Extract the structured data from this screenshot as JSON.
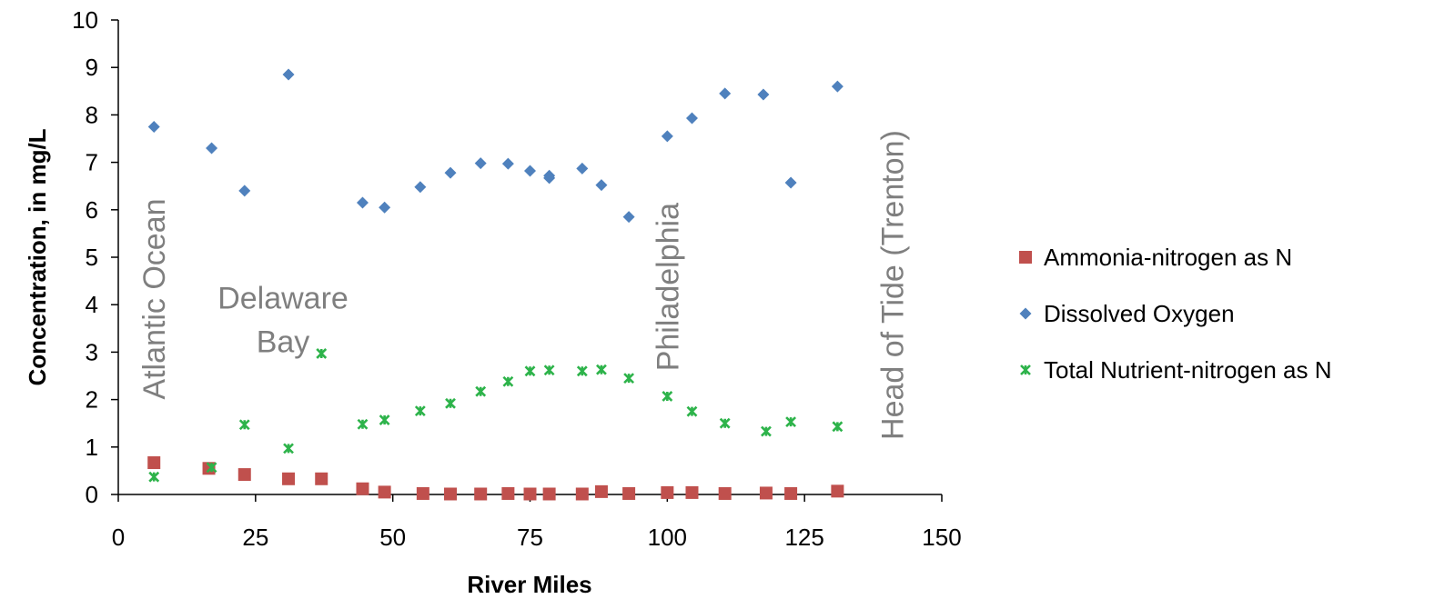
{
  "chart_data": {
    "type": "scatter",
    "xlabel": "River Miles",
    "ylabel": "Concentration, in mg/L",
    "xlim": [
      0,
      150
    ],
    "ylim": [
      0,
      10
    ],
    "xticks": [
      "0",
      "25",
      "50",
      "75",
      "100",
      "125",
      "150"
    ],
    "yticks": [
      "0",
      "1",
      "2",
      "3",
      "4",
      "5",
      "6",
      "7",
      "8",
      "9",
      "10"
    ],
    "grid": false,
    "legend_position": "right",
    "series": [
      {
        "name": "Ammonia-nitrogen as N",
        "marker": "square",
        "color": "#c0504d",
        "x": [
          6.5,
          16.5,
          23,
          31,
          37,
          44.5,
          48.5,
          55.5,
          60.5,
          66,
          71,
          75,
          78.5,
          84.5,
          88,
          93,
          100,
          104.5,
          110.5,
          118,
          122.5,
          131
        ],
        "y": [
          0.67,
          0.55,
          0.42,
          0.33,
          0.33,
          0.12,
          0.05,
          0.02,
          0.01,
          0.01,
          0.02,
          0.01,
          0.01,
          0.01,
          0.06,
          0.02,
          0.04,
          0.04,
          0.02,
          0.03,
          0.02,
          0.07
        ]
      },
      {
        "name": "Dissolved Oxygen",
        "marker": "diamond",
        "color": "#4f81bd",
        "x": [
          6.5,
          17,
          23,
          31,
          44.5,
          48.5,
          55,
          60.5,
          66,
          71,
          75,
          78.5,
          78.5,
          84.5,
          88,
          93,
          100,
          104.5,
          110.5,
          117.5,
          122.5,
          131
        ],
        "y": [
          7.75,
          7.3,
          6.4,
          8.85,
          6.15,
          6.05,
          6.48,
          6.78,
          6.98,
          6.97,
          6.82,
          6.72,
          6.67,
          6.87,
          6.52,
          5.85,
          7.55,
          7.93,
          8.45,
          8.43,
          6.57,
          8.6
        ]
      },
      {
        "name": "Total Nutrient-nitrogen as N",
        "marker": "x",
        "color": "#2db34a",
        "x": [
          6.5,
          17,
          23,
          31,
          37,
          44.5,
          48.5,
          55,
          60.5,
          66,
          71,
          75,
          78.5,
          84.5,
          88,
          93,
          100,
          104.5,
          110.5,
          118,
          122.5,
          131
        ],
        "y": [
          0.37,
          0.57,
          1.47,
          0.97,
          2.97,
          1.48,
          1.57,
          1.76,
          1.92,
          2.17,
          2.38,
          2.6,
          2.62,
          2.6,
          2.63,
          2.45,
          2.07,
          1.75,
          1.5,
          1.33,
          1.53,
          1.43
        ]
      }
    ],
    "annotations": [
      {
        "text": "Atlantic Ocean",
        "x": 6.5,
        "y": 2.0,
        "orientation": "vertical"
      },
      {
        "lines": [
          "Delaware",
          "Bay"
        ],
        "x": 30,
        "y": 3.0,
        "orientation": "horizontal"
      },
      {
        "text": "Philadelphia",
        "x": 100,
        "y": 2.6,
        "orientation": "vertical"
      },
      {
        "text": "Head of Tide (Trenton)",
        "x": 141,
        "y": 1.15,
        "orientation": "vertical"
      }
    ]
  }
}
